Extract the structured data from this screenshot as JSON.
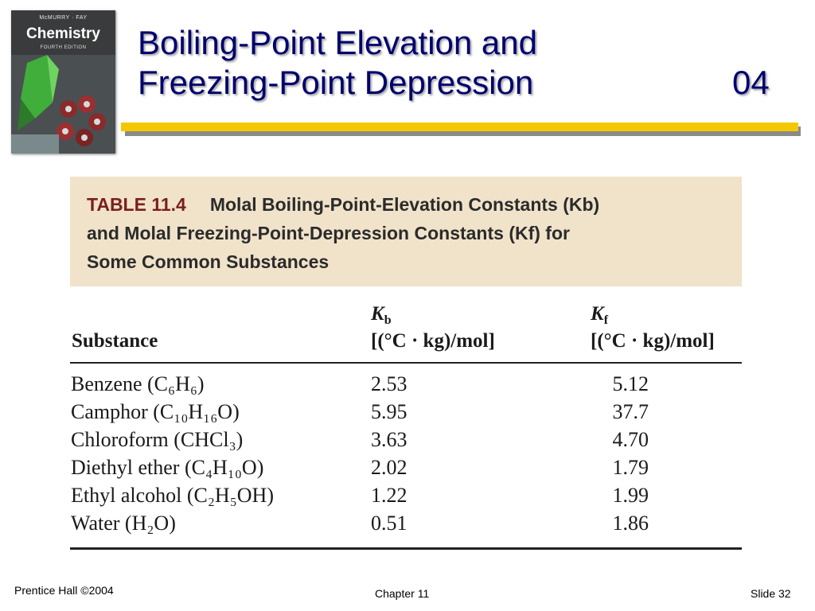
{
  "cover": {
    "authors": "McMURRY · FAY",
    "brand": "Chemistry",
    "edition": "FOURTH EDITION"
  },
  "title": {
    "line1": "Boiling-Point  Elevation and",
    "line2": "Freezing-Point Depression",
    "number": "04"
  },
  "table": {
    "label": "TABLE 11.4",
    "caption_line1": "Molal Boiling-Point-Elevation Constants (Kb)",
    "caption_line2": "and Molal Freezing-Point-Depression Constants (Kf) for",
    "caption_line3": "Some Common Substances",
    "col_substance": "Substance",
    "col_kb_symbol": "K",
    "col_kb_sub": "b",
    "col_kb_unit": "[(°C · kg)/mol]",
    "col_kf_symbol": "K",
    "col_kf_sub": "f",
    "col_kf_unit": "[(°C · kg)/mol]",
    "rows": [
      {
        "substance": "Benzene (C₆H₆)",
        "kb": "2.53",
        "kf": "5.12"
      },
      {
        "substance": "Camphor (C₁₀H₁₆O)",
        "kb": "5.95",
        "kf": "37.7"
      },
      {
        "substance": "Chloroform (CHCl₃)",
        "kb": "3.63",
        "kf": "4.70"
      },
      {
        "substance": "Diethyl ether (C₄H₁₀O)",
        "kb": "2.02",
        "kf": "1.79"
      },
      {
        "substance": "Ethyl alcohol (C₂H₅OH)",
        "kb": "1.22",
        "kf": "1.99"
      },
      {
        "substance": "Water (H₂O)",
        "kb": "0.51",
        "kf": "1.86"
      }
    ]
  },
  "footer": {
    "left": "Prentice Hall ©2004",
    "center": "Chapter 11",
    "right": "Slide 32"
  },
  "colors": {
    "title": "#00006e",
    "rule": "#f4c800",
    "table_header_bg": "#f0e3ca"
  }
}
